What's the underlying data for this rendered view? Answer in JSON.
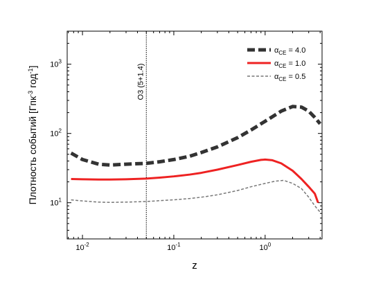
{
  "chart_data": {
    "type": "line",
    "xlabel": "z",
    "ylabel": "Плотность событий [Гпк",
    "ylabel_sup1": "-3",
    "ylabel_mid": " год",
    "ylabel_sup2": "-1",
    "ylabel_end": "]",
    "xscale": "log",
    "yscale": "log",
    "xlim": [
      0.0068,
      4.2
    ],
    "ylim": [
      3,
      3000
    ],
    "grid": false,
    "legend_position": "top-right",
    "x_ticks": [
      {
        "value": 0.01,
        "base": "10",
        "exp": "-2"
      },
      {
        "value": 0.1,
        "base": "10",
        "exp": "-1"
      },
      {
        "value": 1,
        "base": "10",
        "exp": "0"
      }
    ],
    "y_ticks": [
      {
        "value": 10,
        "base": "10",
        "exp": "1"
      },
      {
        "value": 100,
        "base": "10",
        "exp": "2"
      },
      {
        "value": 1000,
        "base": "10",
        "exp": "3"
      }
    ],
    "annotation": {
      "x": 0.05,
      "text": "O3 (5+1.4)"
    },
    "series": [
      {
        "name_base": "α",
        "name_sub": "CE",
        "name_rest": " = 4.0",
        "color": "#333333",
        "style": "dashed-thick",
        "points": [
          [
            0.0075,
            52
          ],
          [
            0.01,
            42
          ],
          [
            0.015,
            36
          ],
          [
            0.02,
            35
          ],
          [
            0.03,
            36
          ],
          [
            0.05,
            37
          ],
          [
            0.07,
            39
          ],
          [
            0.1,
            42
          ],
          [
            0.15,
            47
          ],
          [
            0.2,
            53
          ],
          [
            0.3,
            64
          ],
          [
            0.5,
            87
          ],
          [
            0.7,
            112
          ],
          [
            1.0,
            150
          ],
          [
            1.5,
            210
          ],
          [
            2.0,
            245
          ],
          [
            2.5,
            240
          ],
          [
            3.0,
            210
          ],
          [
            3.5,
            170
          ],
          [
            4.0,
            138
          ]
        ]
      },
      {
        "name_base": "α",
        "name_sub": "CE",
        "name_rest": " = 1.0",
        "color": "#ee2222",
        "style": "solid-thick",
        "points": [
          [
            0.0075,
            22
          ],
          [
            0.01,
            21.8
          ],
          [
            0.015,
            21.6
          ],
          [
            0.02,
            21.6
          ],
          [
            0.03,
            21.8
          ],
          [
            0.05,
            22.3
          ],
          [
            0.07,
            23
          ],
          [
            0.1,
            24
          ],
          [
            0.15,
            25.5
          ],
          [
            0.2,
            27
          ],
          [
            0.3,
            30
          ],
          [
            0.5,
            35
          ],
          [
            0.7,
            39
          ],
          [
            0.9,
            41.5
          ],
          [
            1.0,
            42
          ],
          [
            1.2,
            41
          ],
          [
            1.5,
            37
          ],
          [
            2.0,
            29
          ],
          [
            2.5,
            22
          ],
          [
            3.0,
            17
          ],
          [
            3.5,
            13.5
          ],
          [
            3.8,
            10
          ]
        ]
      },
      {
        "name_base": "α",
        "name_sub": "CE",
        "name_rest": " = 0.5",
        "color": "#777777",
        "style": "dashed-thin",
        "points": [
          [
            0.0075,
            11
          ],
          [
            0.01,
            10.6
          ],
          [
            0.015,
            10.2
          ],
          [
            0.02,
            10.1
          ],
          [
            0.03,
            10.2
          ],
          [
            0.05,
            10.4
          ],
          [
            0.07,
            10.7
          ],
          [
            0.1,
            11
          ],
          [
            0.15,
            11.5
          ],
          [
            0.2,
            12
          ],
          [
            0.3,
            13
          ],
          [
            0.5,
            15
          ],
          [
            0.7,
            17
          ],
          [
            1.0,
            19
          ],
          [
            1.3,
            20.5
          ],
          [
            1.6,
            21
          ],
          [
            2.0,
            19
          ],
          [
            2.5,
            16
          ],
          [
            3.0,
            12
          ],
          [
            3.5,
            9
          ],
          [
            4.0,
            7.3
          ]
        ]
      }
    ]
  }
}
